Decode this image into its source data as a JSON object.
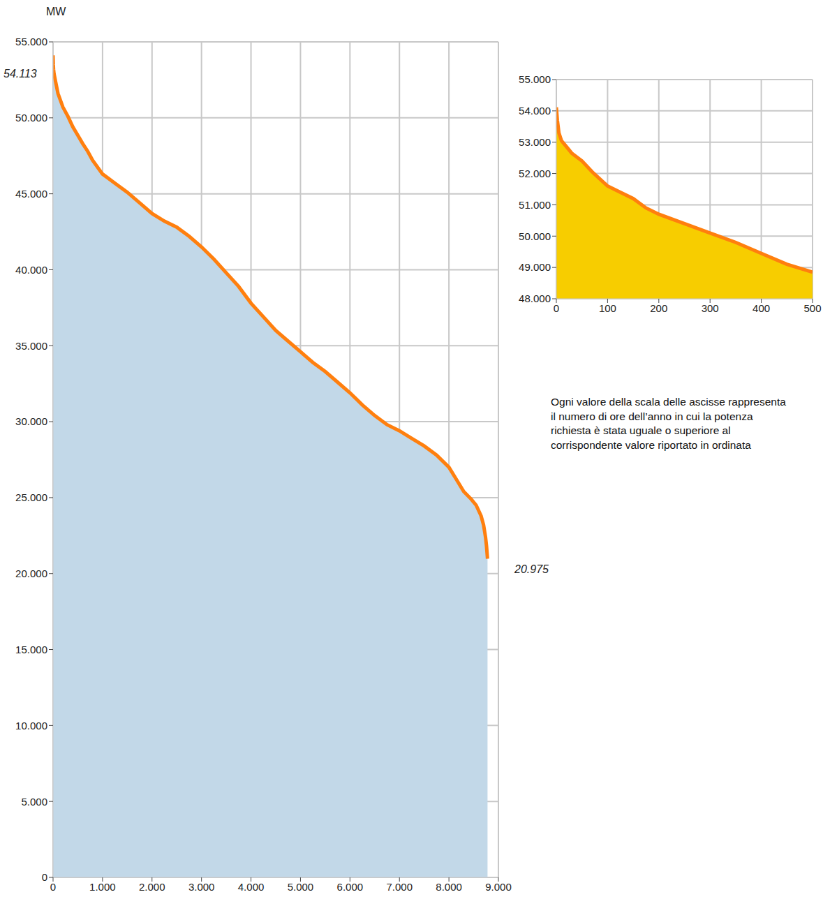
{
  "chart_data": [
    {
      "type": "area",
      "ylabel": "MW",
      "x": [
        0,
        5,
        10,
        20,
        50,
        100,
        200,
        300,
        400,
        500,
        600,
        700,
        800,
        1000,
        1250,
        1500,
        1750,
        2000,
        2250,
        2500,
        2750,
        3000,
        3250,
        3500,
        3750,
        4000,
        4250,
        4500,
        4750,
        5000,
        5250,
        5500,
        5750,
        6000,
        6250,
        6500,
        6750,
        7000,
        7250,
        7500,
        7750,
        8000,
        8150,
        8300,
        8450,
        8550,
        8650,
        8700,
        8740,
        8760,
        8780
      ],
      "values": [
        54113,
        53500,
        53200,
        52900,
        52400,
        51600,
        50700,
        50100,
        49400,
        48850,
        48300,
        47800,
        47200,
        46300,
        45700,
        45100,
        44400,
        43700,
        43200,
        42800,
        42200,
        41500,
        40700,
        39800,
        38900,
        37800,
        36900,
        36000,
        35300,
        34600,
        33900,
        33300,
        32600,
        31900,
        31100,
        30400,
        29800,
        29400,
        28900,
        28400,
        27800,
        27000,
        26200,
        25400,
        24900,
        24500,
        23800,
        23200,
        22400,
        21800,
        20975
      ],
      "color": "#ff7f0e",
      "xlim": [
        0,
        9000
      ],
      "xticks": [
        0,
        {
          "value": 1000,
          "label": "1.000"
        },
        {
          "value": 2000,
          "label": "2.000"
        },
        {
          "value": 3000,
          "label": "3.000"
        },
        {
          "value": 4000,
          "label": "4.000"
        },
        {
          "value": 5000,
          "label": "5.000"
        },
        {
          "value": 6000,
          "label": "6.000"
        },
        {
          "value": 7000,
          "label": "7.000"
        },
        {
          "value": 8000,
          "label": "8.000"
        },
        {
          "value": 9000,
          "label": "9.000"
        }
      ],
      "ylim": [
        0,
        55000
      ],
      "yticks": [
        0,
        {
          "value": 5000,
          "label": "5.000"
        },
        {
          "value": 10000,
          "label": "10.000"
        },
        {
          "value": 15000,
          "label": "15.000"
        },
        {
          "value": 20000,
          "label": "20.000"
        },
        {
          "value": 25000,
          "label": "25.000"
        },
        {
          "value": 30000,
          "label": "30.000"
        },
        {
          "value": 35000,
          "label": "35.000"
        },
        {
          "value": 40000,
          "label": "40.000"
        },
        {
          "value": 45000,
          "label": "45.000"
        },
        {
          "value": 50000,
          "label": "50.000"
        },
        {
          "value": 55000,
          "label": "55.000"
        }
      ],
      "grid": true,
      "annotations": [
        "54.113",
        "20.975"
      ]
    },
    {
      "type": "area",
      "x": [
        0,
        2,
        5,
        10,
        20,
        30,
        50,
        70,
        100,
        125,
        150,
        175,
        200,
        250,
        300,
        350,
        400,
        450,
        500
      ],
      "values": [
        54113,
        53700,
        53300,
        53050,
        52850,
        52650,
        52400,
        52050,
        51600,
        51400,
        51200,
        50900,
        50700,
        50400,
        50100,
        49800,
        49450,
        49100,
        48850
      ],
      "color": "#ff7f0e",
      "xlim": [
        0,
        500
      ],
      "xticks": [
        0,
        100,
        200,
        300,
        400,
        500
      ],
      "ylim": [
        48000,
        55000
      ],
      "yticks": [
        {
          "value": 48000,
          "label": "48.000"
        },
        {
          "value": 49000,
          "label": "49.000"
        },
        {
          "value": 50000,
          "label": "50.000"
        },
        {
          "value": 51000,
          "label": "51.000"
        },
        {
          "value": 52000,
          "label": "52.000"
        },
        {
          "value": 53000,
          "label": "53.000"
        },
        {
          "value": 54000,
          "label": "54.000"
        },
        {
          "value": 55000,
          "label": "55.000"
        }
      ],
      "grid": true
    }
  ],
  "note": [
    "Ogni valore della scala delle ascisse rappresenta",
    "il numero di ore dell’anno in cui la potenza",
    "richiesta è stata uguale o superiore al",
    "corrispondente valore riportato in ordinata"
  ]
}
